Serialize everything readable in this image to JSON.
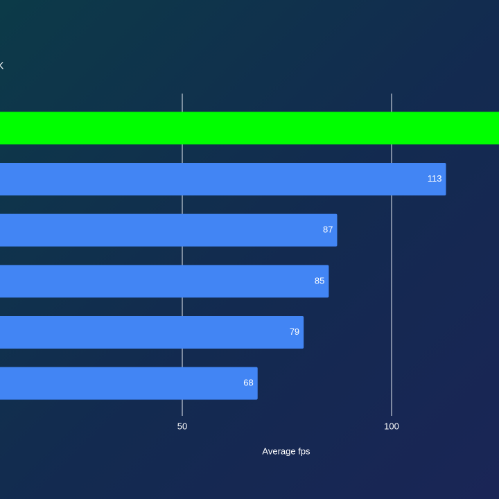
{
  "chart_data": {
    "type": "hbar",
    "subtitle": "K",
    "x_label": "Average fps",
    "categories": [
      null,
      null,
      null,
      null,
      null,
      null
    ],
    "values": [
      130,
      113,
      87,
      85,
      79,
      68
    ],
    "colors": [
      "#00ff00",
      "#4285f4",
      "#4285f4",
      "#4285f4",
      "#4285f4",
      "#4285f4"
    ],
    "xlim": [
      0,
      125
    ],
    "xticks": [
      50,
      100
    ],
    "grid": true
  }
}
